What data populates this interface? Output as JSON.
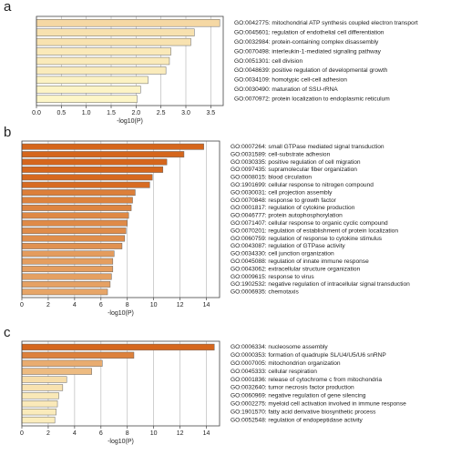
{
  "chart_data": [
    {
      "type": "bar",
      "panel": "a",
      "xlabel": "-log10(P)",
      "categories": [
        "GO:0042775: mitochondrial ATP synthesis coupled electron transport",
        "GO:0045601: regulation of endothelial cell differentiation",
        "GO:0032984: protein-containing complex disassembly",
        "GO:0070498: interleukin-1-mediated signaling pathway",
        "GO:0051301: cell division",
        "GO:0048639: positive regulation of developmental growth",
        "GO:0034109: homotypic cell-cell adhesion",
        "GO:0030490: maturation of SSU-rRNA",
        "GO:0070972: protein localization to endoplasmic reticulum"
      ],
      "values": [
        3.68,
        3.17,
        3.1,
        2.7,
        2.67,
        2.6,
        2.24,
        2.09,
        2.02
      ],
      "xlim": [
        0,
        3.75
      ],
      "xticks": [
        {
          "value": 0,
          "label": "0.0"
        },
        0.5,
        {
          "value": 1,
          "label": "1.0"
        },
        1.5,
        {
          "value": 2,
          "label": "2.0"
        },
        2.5,
        {
          "value": 3,
          "label": "3.0"
        },
        3.5
      ],
      "grid": true,
      "color_domain": [
        2,
        10
      ],
      "color_range": [
        "#fdf6c8",
        "#d5661c"
      ]
    },
    {
      "type": "bar",
      "panel": "b",
      "xlabel": "-log10(P)",
      "categories": [
        "GO:0007264: small GTPase mediated signal transduction",
        "GO:0031589: cell-substrate adhesion",
        "GO:0030335: positive regulation of cell migration",
        "GO:0097435: supramolecular fiber organization",
        "GO:0008015: blood circulation",
        "GO:1901699: cellular response to nitrogen compound",
        "GO:0030031: cell projection assembly",
        "GO:0070848: response to growth factor",
        "GO:0001817: regulation of cytokine production",
        "GO:0046777: protein autophosphorylation",
        "GO:0071407: cellular response to organic cyclic compound",
        "GO:0070201: regulation of establishment of protein localization",
        "GO:0060759: regulation of response to cytokine stimulus",
        "GO:0043087: regulation of GTPase activity",
        "GO:0034330: cell junction organization",
        "GO:0045088: regulation of innate immune response",
        "GO:0043062: extracellular structure organization",
        "GO:0009615: response to virus",
        "GO:1902532: negative regulation of intracellular signal transduction",
        "GO:0006935: chemotaxis"
      ],
      "values": [
        13.8,
        12.3,
        11.0,
        10.7,
        9.9,
        9.7,
        8.6,
        8.4,
        8.3,
        8.1,
        8.0,
        7.9,
        7.8,
        7.6,
        7.0,
        6.9,
        6.9,
        6.8,
        6.7,
        6.5
      ],
      "xlim": [
        0,
        15
      ],
      "xticks": [
        0,
        2,
        4,
        6,
        8,
        10,
        12,
        14
      ],
      "grid": true,
      "color_domain": [
        2,
        10
      ],
      "color_range": [
        "#fdf6c8",
        "#d5661c"
      ]
    },
    {
      "type": "bar",
      "panel": "c",
      "xlabel": "-log10(P)",
      "categories": [
        "GO:0006334: nucleosome assembly",
        "GO:0000353: formation of quadruple SL/U4/U5/U6 snRNP",
        "GO:0007005: mitochondrion organization",
        "GO:0045333: cellular respiration",
        "GO:0001836: release of cytochrome c from mitochondria",
        "GO:0032640: tumor necrosis factor production",
        "GO:0060969: negative regulation of gene silencing",
        "GO:0002275: myeloid cell activation involved in immune response",
        "GO:1901570: fatty acid derivative biosynthetic process",
        "GO:0052548: regulation of endopeptidase activity"
      ],
      "values": [
        14.6,
        8.5,
        6.1,
        5.3,
        3.4,
        3.1,
        2.8,
        2.7,
        2.6,
        2.5
      ],
      "xlim": [
        0,
        15
      ],
      "xticks": [
        0,
        2,
        4,
        6,
        8,
        10,
        12,
        14
      ],
      "grid": true,
      "color_domain": [
        2,
        10
      ],
      "color_range": [
        "#fdf6c8",
        "#d5661c"
      ]
    }
  ]
}
